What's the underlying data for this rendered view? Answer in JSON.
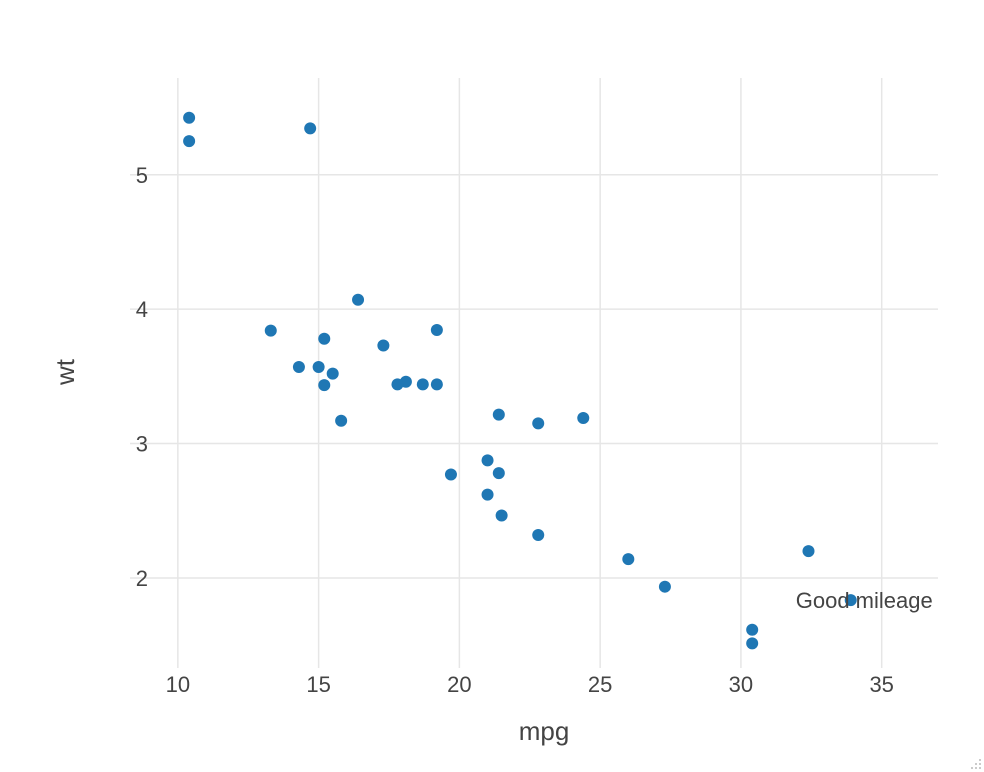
{
  "chart_data": {
    "type": "scatter",
    "title": "",
    "xlabel": "mpg",
    "ylabel": "wt",
    "xlim": [
      8.3,
      37.0
    ],
    "ylim": [
      1.33,
      5.72
    ],
    "x_ticks": [
      10,
      15,
      20,
      25,
      30,
      35
    ],
    "y_ticks": [
      2,
      3,
      4,
      5
    ],
    "grid": true,
    "marker_color": "#1f77b4",
    "points": [
      {
        "x": 21.0,
        "y": 2.62
      },
      {
        "x": 21.0,
        "y": 2.875
      },
      {
        "x": 22.8,
        "y": 2.32
      },
      {
        "x": 21.4,
        "y": 3.215
      },
      {
        "x": 18.7,
        "y": 3.44
      },
      {
        "x": 18.1,
        "y": 3.46
      },
      {
        "x": 14.3,
        "y": 3.57
      },
      {
        "x": 24.4,
        "y": 3.19
      },
      {
        "x": 22.8,
        "y": 3.15
      },
      {
        "x": 19.2,
        "y": 3.44
      },
      {
        "x": 17.8,
        "y": 3.44
      },
      {
        "x": 16.4,
        "y": 4.07
      },
      {
        "x": 17.3,
        "y": 3.73
      },
      {
        "x": 15.2,
        "y": 3.78
      },
      {
        "x": 10.4,
        "y": 5.25
      },
      {
        "x": 10.4,
        "y": 5.424
      },
      {
        "x": 14.7,
        "y": 5.345
      },
      {
        "x": 32.4,
        "y": 2.2
      },
      {
        "x": 30.4,
        "y": 1.615
      },
      {
        "x": 33.9,
        "y": 1.835
      },
      {
        "x": 21.5,
        "y": 2.465
      },
      {
        "x": 15.5,
        "y": 3.52
      },
      {
        "x": 15.2,
        "y": 3.435
      },
      {
        "x": 13.3,
        "y": 3.84
      },
      {
        "x": 19.2,
        "y": 3.845
      },
      {
        "x": 27.3,
        "y": 1.935
      },
      {
        "x": 26.0,
        "y": 2.14
      },
      {
        "x": 30.4,
        "y": 1.513
      },
      {
        "x": 15.8,
        "y": 3.17
      },
      {
        "x": 19.7,
        "y": 2.77
      },
      {
        "x": 15.0,
        "y": 3.57
      },
      {
        "x": 21.4,
        "y": 2.78
      }
    ],
    "annotations": [
      {
        "text": "Good mileage",
        "x": 33.9,
        "y": 1.835
      }
    ]
  }
}
